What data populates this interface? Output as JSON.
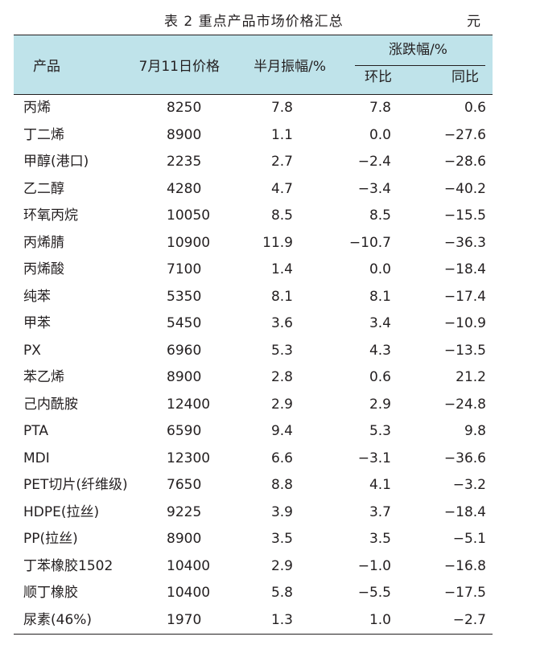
{
  "caption": {
    "title": "表 2  重点产品市场价格汇总",
    "unit": "元"
  },
  "headers": {
    "product": "产品",
    "price": "7月11日价格",
    "amplitude": "半月振幅/%",
    "change": "涨跌幅/%",
    "mom": "环比",
    "yoy": "同比"
  },
  "rows": [
    {
      "product": "丙烯",
      "price": "8250",
      "amplitude": "7.8",
      "mom": "7.8",
      "yoy": "0.6"
    },
    {
      "product": "丁二烯",
      "price": "8900",
      "amplitude": "1.1",
      "mom": "0.0",
      "yoy": "−27.6"
    },
    {
      "product": "甲醇(港口)",
      "price": "2235",
      "amplitude": "2.7",
      "mom": "−2.4",
      "yoy": "−28.6"
    },
    {
      "product": "乙二醇",
      "price": "4280",
      "amplitude": "4.7",
      "mom": "−3.4",
      "yoy": "−40.2"
    },
    {
      "product": "环氧丙烷",
      "price": "10050",
      "amplitude": "8.5",
      "mom": "8.5",
      "yoy": "−15.5"
    },
    {
      "product": "丙烯腈",
      "price": "10900",
      "amplitude": "11.9",
      "mom": "−10.7",
      "yoy": "−36.3"
    },
    {
      "product": "丙烯酸",
      "price": "7100",
      "amplitude": "1.4",
      "mom": "0.0",
      "yoy": "−18.4"
    },
    {
      "product": "纯苯",
      "price": "5350",
      "amplitude": "8.1",
      "mom": "8.1",
      "yoy": "−17.4"
    },
    {
      "product": "甲苯",
      "price": "5450",
      "amplitude": "3.6",
      "mom": "3.4",
      "yoy": "−10.9"
    },
    {
      "product": "PX",
      "price": "6960",
      "amplitude": "5.3",
      "mom": "4.3",
      "yoy": "−13.5"
    },
    {
      "product": "苯乙烯",
      "price": "8900",
      "amplitude": "2.8",
      "mom": "0.6",
      "yoy": "21.2"
    },
    {
      "product": "己内酰胺",
      "price": "12400",
      "amplitude": "2.9",
      "mom": "2.9",
      "yoy": "−24.8"
    },
    {
      "product": "PTA",
      "price": "6590",
      "amplitude": "9.4",
      "mom": "5.3",
      "yoy": "9.8"
    },
    {
      "product": "MDI",
      "price": "12300",
      "amplitude": "6.6",
      "mom": "−3.1",
      "yoy": "−36.6"
    },
    {
      "product": "PET切片(纤维级)",
      "price": "7650",
      "amplitude": "8.8",
      "mom": "4.1",
      "yoy": "−3.2"
    },
    {
      "product": "HDPE(拉丝)",
      "price": "9225",
      "amplitude": "3.9",
      "mom": "3.7",
      "yoy": "−18.4"
    },
    {
      "product": "PP(拉丝)",
      "price": "8900",
      "amplitude": "3.5",
      "mom": "3.5",
      "yoy": "−5.1"
    },
    {
      "product": "丁苯橡胶1502",
      "price": "10400",
      "amplitude": "2.9",
      "mom": "−1.0",
      "yoy": "−16.8"
    },
    {
      "product": "顺丁橡胶",
      "price": "10400",
      "amplitude": "5.8",
      "mom": "−5.5",
      "yoy": "−17.5"
    },
    {
      "product": "尿素(46%)",
      "price": "1970",
      "amplitude": "1.3",
      "mom": "1.0",
      "yoy": "−2.7"
    }
  ]
}
